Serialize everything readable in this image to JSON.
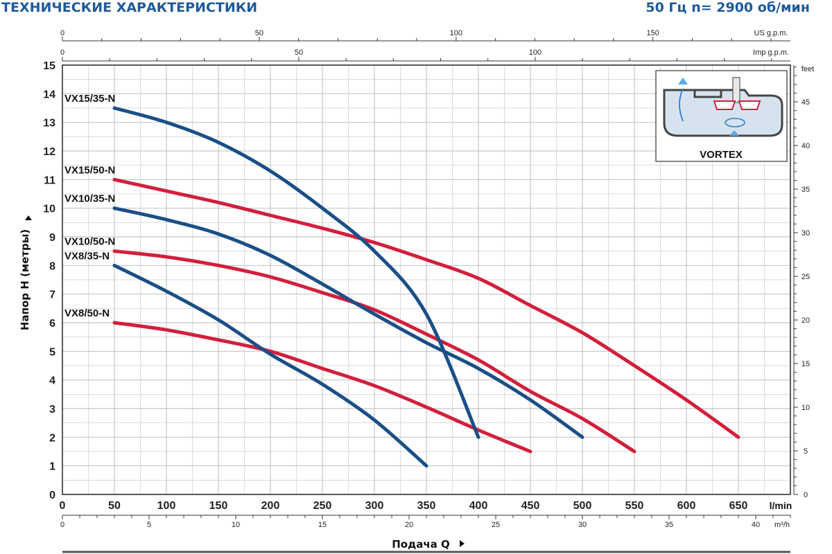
{
  "header": {
    "title": "ТЕХНИЧЕСКИЕ ХАРАКТЕРИСТИКИ",
    "spec": "50 Гц    n= 2900 об/мин"
  },
  "colors": {
    "blue": "#1a4f86",
    "red": "#d21f3c",
    "grid": "#b7b7b7",
    "header": "#1e5a9a"
  },
  "chart_data": {
    "type": "line",
    "xlabel": "Подача Q",
    "ylabel": "Напор H (метры)",
    "x_unit": "l/min",
    "xlim": [
      0,
      700
    ],
    "ylim": [
      0,
      15
    ],
    "grid": true,
    "x_ticks": [
      0,
      50,
      100,
      150,
      200,
      250,
      300,
      350,
      400,
      450,
      500,
      550,
      600,
      650
    ],
    "y_ticks": [
      0,
      1,
      2,
      3,
      4,
      5,
      6,
      7,
      8,
      9,
      10,
      11,
      12,
      13,
      14,
      15
    ],
    "secondary_axes": {
      "us_gpm": {
        "unit": "US g.p.m.",
        "ticks": [
          0,
          50,
          100,
          150
        ]
      },
      "imp_gpm": {
        "unit": "Imp g.p.m.",
        "ticks": [
          0,
          50,
          100
        ]
      },
      "m3h": {
        "unit": "m³/h",
        "ticks": [
          0,
          5,
          10,
          15,
          20,
          25,
          30,
          35,
          40
        ]
      },
      "feet": {
        "unit": "feet",
        "ticks": [
          0,
          5,
          10,
          15,
          20,
          25,
          30,
          35,
          40,
          45
        ]
      }
    },
    "series": [
      {
        "name": "VX15/35-N",
        "color": "blue",
        "x": [
          50,
          100,
          150,
          200,
          250,
          300,
          350,
          400
        ],
        "y": [
          13.5,
          13.0,
          12.3,
          11.3,
          10.0,
          8.5,
          6.3,
          2.0
        ]
      },
      {
        "name": "VX15/50-N",
        "color": "red",
        "x": [
          50,
          100,
          150,
          200,
          250,
          300,
          350,
          400,
          450,
          500,
          550,
          600,
          650
        ],
        "y": [
          11.0,
          10.6,
          10.2,
          9.75,
          9.3,
          8.8,
          8.2,
          7.55,
          6.6,
          5.65,
          4.5,
          3.3,
          2.0
        ]
      },
      {
        "name": "VX10/35-N",
        "color": "blue",
        "x": [
          50,
          100,
          150,
          200,
          250,
          300,
          350,
          400,
          450,
          500
        ],
        "y": [
          10.0,
          9.6,
          9.1,
          8.35,
          7.35,
          6.3,
          5.3,
          4.4,
          3.3,
          2.0
        ]
      },
      {
        "name": "VX10/50-N",
        "color": "red",
        "x": [
          50,
          100,
          150,
          200,
          250,
          300,
          350,
          400,
          450,
          500,
          550
        ],
        "y": [
          8.5,
          8.3,
          8.0,
          7.6,
          7.05,
          6.45,
          5.6,
          4.7,
          3.6,
          2.65,
          1.5
        ]
      },
      {
        "name": "VX8/35-N",
        "color": "blue",
        "x": [
          50,
          100,
          150,
          200,
          250,
          300,
          350
        ],
        "y": [
          8.0,
          7.1,
          6.1,
          4.9,
          3.85,
          2.6,
          1.0
        ]
      },
      {
        "name": "VX8/50-N",
        "color": "red",
        "x": [
          50,
          100,
          150,
          200,
          250,
          300,
          350,
          400,
          450
        ],
        "y": [
          6.0,
          5.75,
          5.4,
          5.0,
          4.4,
          3.8,
          3.05,
          2.25,
          1.5
        ]
      }
    ],
    "labels": [
      "VX15/35-N",
      "VX15/50-N",
      "VX10/35-N",
      "VX10/50-N",
      "VX8/35-N",
      "VX8/50-N"
    ]
  },
  "inset": {
    "label": "VORTEX",
    "icon": "vortex-impeller-diagram"
  }
}
